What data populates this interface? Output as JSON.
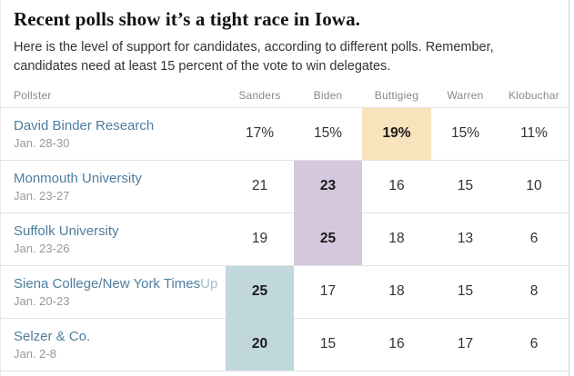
{
  "header": {
    "title": "Recent polls show it’s a tight race in Iowa.",
    "subtitle_lines": [
      "Here is the level of support for candidates, according to different polls. Remember,",
      "candidates need at least 15 percent of the vote to win delegates."
    ]
  },
  "table": {
    "columns": [
      "Pollster",
      "Sanders",
      "Biden",
      "Buttigieg",
      "Warren",
      "Klobuchar"
    ],
    "rows": [
      {
        "name": "David Binder Research",
        "name_suffix": "",
        "date": "Jan. 28-30",
        "values": [
          "17%",
          "15%",
          "19%",
          "15%",
          "11%"
        ],
        "leader": "Buttigieg",
        "highlight_col": 2,
        "highlight_color": "#f8e3bc"
      },
      {
        "name": "Monmouth University",
        "name_suffix": "",
        "date": "Jan. 23-27",
        "values": [
          "21",
          "23",
          "16",
          "15",
          "10"
        ],
        "leader": "Biden",
        "highlight_col": 1,
        "highlight_color": "#d5c8de"
      },
      {
        "name": "Suffolk University",
        "name_suffix": "",
        "date": "Jan. 23-26",
        "values": [
          "19",
          "25",
          "18",
          "13",
          "6"
        ],
        "leader": "Biden",
        "highlight_col": 1,
        "highlight_color": "#d5c8de"
      },
      {
        "name": "Siena College/New York Times",
        "name_suffix": "Up",
        "date": "Jan. 20-23",
        "values": [
          "25",
          "17",
          "18",
          "15",
          "8"
        ],
        "leader": "Sanders",
        "highlight_col": 0,
        "highlight_color": "#c0d8dc"
      },
      {
        "name": "Selzer & Co.",
        "name_suffix": "",
        "date": "Jan. 2-8",
        "values": [
          "20",
          "15",
          "16",
          "17",
          "6"
        ],
        "leader": "Sanders",
        "highlight_col": 0,
        "highlight_color": "#c0d8dc"
      }
    ],
    "highlight_colors": {
      "buttigieg_tan": "#f8e3bc",
      "biden_purple": "#d5c8de",
      "sanders_teal": "#c0d8dc"
    },
    "border_color": "#e2e2e2"
  },
  "chart_data": {
    "type": "table",
    "title": "Recent polls show it’s a tight race in Iowa.",
    "subtitle": "Here is the level of support for candidates, according to different polls. Remember, candidates need at least 15 percent of the vote to win delegates.",
    "columns": [
      "Pollster",
      "Sanders",
      "Biden",
      "Buttigieg",
      "Warren",
      "Klobuchar"
    ],
    "unit": "percent",
    "rows": [
      {
        "pollster": "David Binder Research",
        "dates": "Jan. 28-30",
        "sanders": 17,
        "biden": 15,
        "buttigieg": 19,
        "warren": 15,
        "klobuchar": 11,
        "leader": "Buttigieg"
      },
      {
        "pollster": "Monmouth University",
        "dates": "Jan. 23-27",
        "sanders": 21,
        "biden": 23,
        "buttigieg": 16,
        "warren": 15,
        "klobuchar": 10,
        "leader": "Biden"
      },
      {
        "pollster": "Suffolk University",
        "dates": "Jan. 23-26",
        "sanders": 19,
        "biden": 25,
        "buttigieg": 18,
        "warren": 13,
        "klobuchar": 6,
        "leader": "Biden"
      },
      {
        "pollster": "Siena College/New York Times Up",
        "dates": "Jan. 20-23",
        "sanders": 25,
        "biden": 17,
        "buttigieg": 18,
        "warren": 15,
        "klobuchar": 8,
        "leader": "Sanders"
      },
      {
        "pollster": "Selzer & Co.",
        "dates": "Jan. 2-8",
        "sanders": 20,
        "biden": 15,
        "buttigieg": 16,
        "warren": 17,
        "klobuchar": 6,
        "leader": "Sanders"
      }
    ],
    "leader_highlight_colors": {
      "Buttigieg": "#f8e3bc",
      "Biden": "#d5c8de",
      "Sanders": "#c0d8dc"
    }
  }
}
